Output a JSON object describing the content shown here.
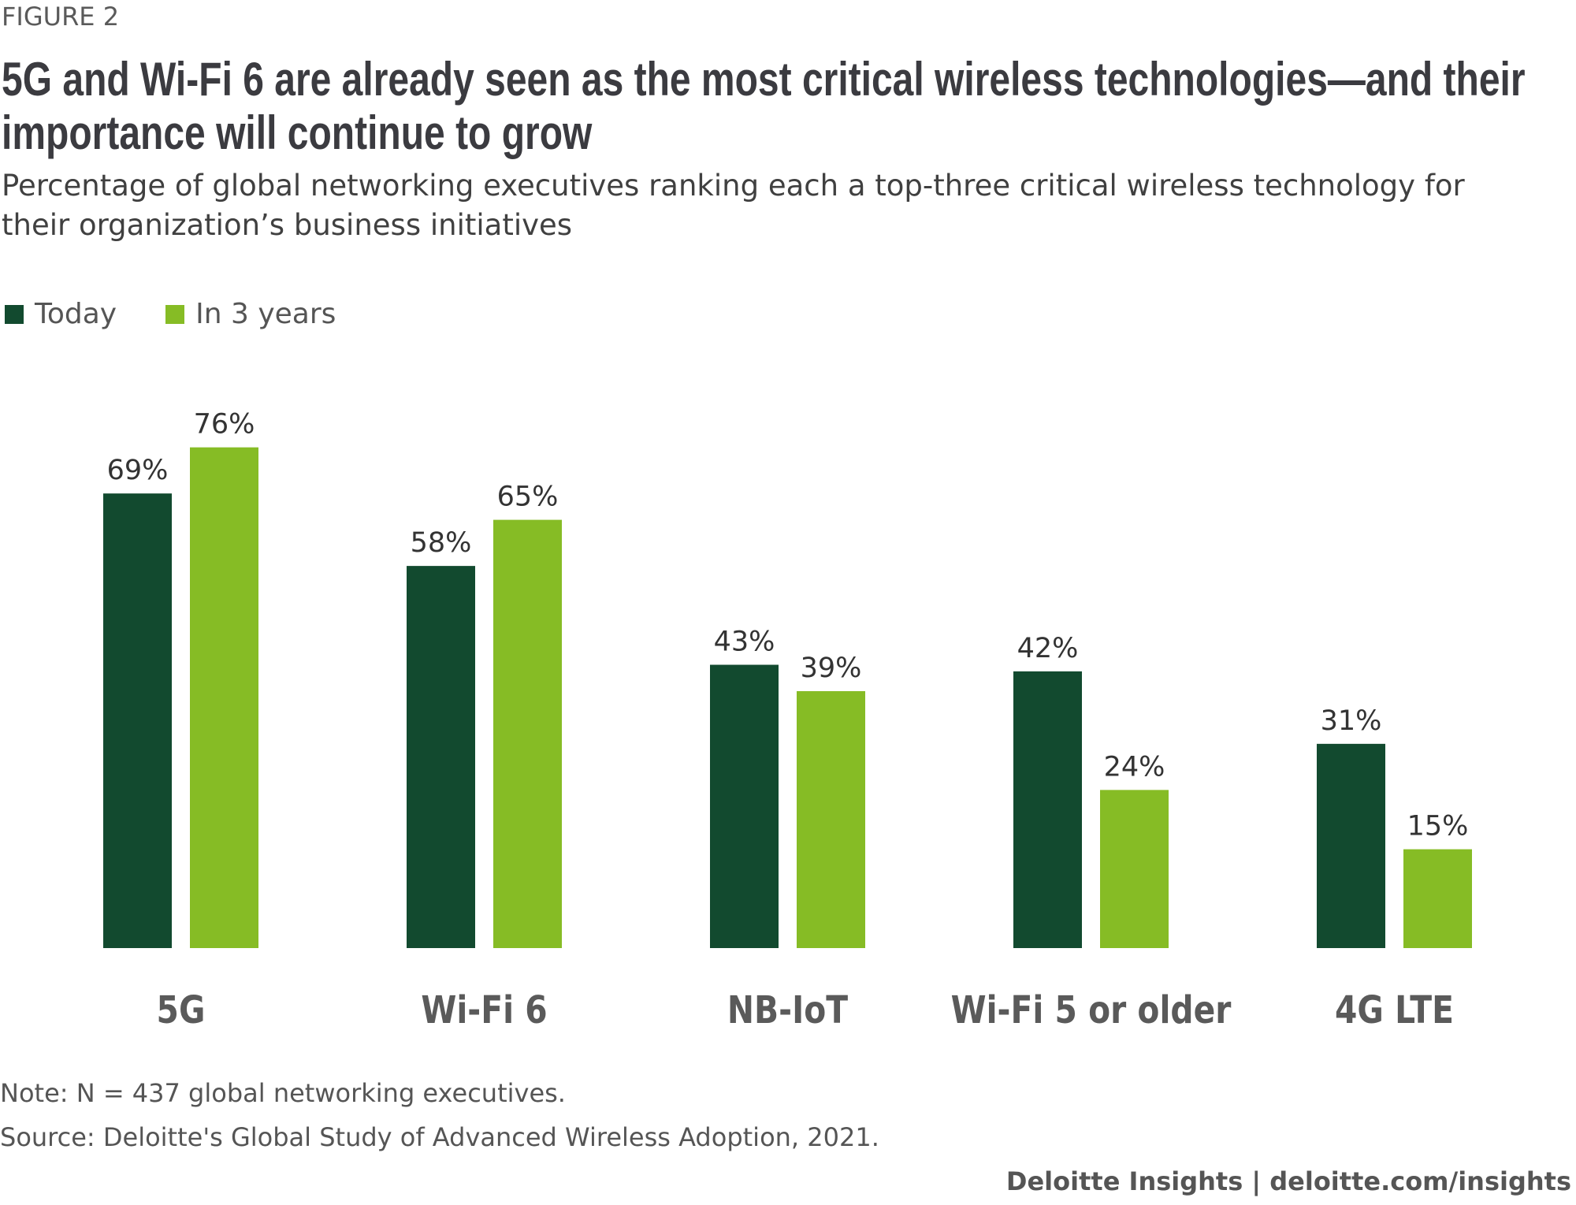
{
  "figure_label": "FIGURE 2",
  "title_lines": [
    "5G and Wi-Fi 6 are already seen as the most critical wireless technologies—and their",
    "importance will continue to grow"
  ],
  "subtitle_lines": [
    "Percentage of global networking executives ranking each a top-three critical wireless technology for",
    "their organization’s business initiatives"
  ],
  "note": "Note: N = 437 global networking executives.",
  "source": "Source: Deloitte's Global Study of Advanced Wireless Adoption, 2021.",
  "brand": "Deloitte Insights | deloitte.com/insights",
  "chart_data": {
    "type": "bar",
    "categories": [
      "5G",
      "Wi-Fi 6",
      "NB-IoT",
      "Wi-Fi 5 or older",
      "4G LTE"
    ],
    "series": [
      {
        "name": "Today",
        "values": [
          69,
          58,
          43,
          42,
          31
        ],
        "color": "#124A2F"
      },
      {
        "name": "In 3 years",
        "values": [
          76,
          65,
          39,
          24,
          15
        ],
        "color": "#86BC25"
      }
    ],
    "value_suffix": "%",
    "ylim": [
      0,
      100
    ],
    "grid": false,
    "legend_placement": "top-left"
  }
}
